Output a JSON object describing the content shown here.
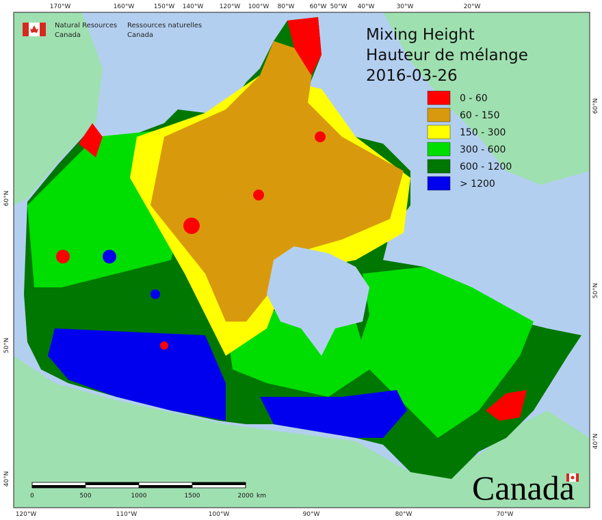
{
  "header": {
    "agency_en": [
      "Natural Resources",
      "Canada"
    ],
    "agency_fr": [
      "Ressources naturelles",
      "Canada"
    ]
  },
  "title": [
    "Mixing Height",
    "Hauteur de mélange",
    "2016-03-26"
  ],
  "legend": [
    {
      "label": "0 - 60",
      "color": "#ff0000"
    },
    {
      "label": "60 - 150",
      "color": "#d89a0c"
    },
    {
      "label": "150 - 300",
      "color": "#ffff00"
    },
    {
      "label": "300 - 600",
      "color": "#00dd00"
    },
    {
      "label": "600 - 1200",
      "color": "#007700"
    },
    {
      "label": "> 1200",
      "color": "#0000ee"
    }
  ],
  "top_axis": [
    "170°W",
    "160°W",
    "150°W",
    "140°W",
    "120°W",
    "100°W",
    "80°W",
    "60°W",
    "50°W",
    "40°W",
    "30°W",
    "20°W"
  ],
  "bottom_axis": [
    "120°W",
    "110°W",
    "100°W",
    "90°W",
    "80°W",
    "70°W"
  ],
  "left_axis": [
    "60°N",
    "50°N",
    "40°N"
  ],
  "right_axis": [
    "60°N",
    "50°N",
    "40°N"
  ],
  "scale_bar": {
    "ticks": [
      0,
      500,
      1000,
      1500,
      2000
    ],
    "unit": "km"
  },
  "wordmark": "Canada"
}
